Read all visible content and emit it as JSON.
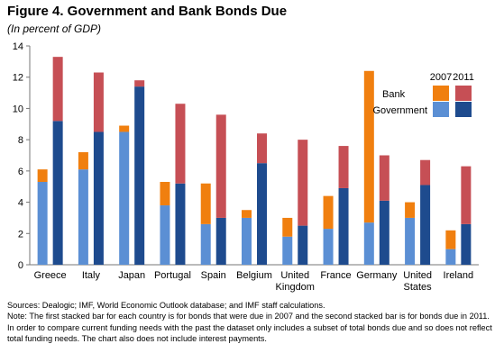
{
  "title": "Figure 4. Government and Bank Bonds Due",
  "subtitle": "(In percent of GDP)",
  "notes": {
    "sources": "Sources: Dealogic; IMF, World Economic Outlook database; and IMF staff calculations.",
    "note": "Note: The first stacked bar for each country is for bonds that were due in 2007 and the second stacked bar is for bonds due in 2011. In order to compare current funding needs with the past the dataset only includes a subset of total bonds due and so does not reflect total funding needs. The chart also does not include interest payments."
  },
  "chart_data": {
    "type": "bar",
    "stacked": true,
    "ylim": [
      0,
      14
    ],
    "yticks": [
      0,
      2,
      4,
      6,
      8,
      10,
      12,
      14
    ],
    "categories": [
      [
        "Greece"
      ],
      [
        "Italy"
      ],
      [
        "Japan"
      ],
      [
        "Portugal"
      ],
      [
        "Spain"
      ],
      [
        "Belgium"
      ],
      [
        "United",
        "Kingdom"
      ],
      [
        "France"
      ],
      [
        "Germany"
      ],
      [
        "United",
        "States"
      ],
      [
        "Ireland"
      ]
    ],
    "legend": {
      "years": [
        "2007",
        "2011"
      ],
      "rows": [
        "Bank",
        "Government"
      ]
    },
    "colors": {
      "government_2007": "#5b8fd4",
      "bank_2007": "#f07f0f",
      "government_2011": "#1e4b8e",
      "bank_2011": "#c64f55",
      "axis": "#777777"
    },
    "series": [
      {
        "name": "2007",
        "government": [
          5.3,
          6.1,
          8.5,
          3.8,
          2.6,
          3.0,
          1.8,
          2.3,
          2.7,
          3.0,
          1.0
        ],
        "bank": [
          0.8,
          1.1,
          0.4,
          1.5,
          2.6,
          0.5,
          1.2,
          2.1,
          9.7,
          1.0,
          1.2
        ],
        "total": [
          6.1,
          7.2,
          8.9,
          5.3,
          5.2,
          3.5,
          3.0,
          4.4,
          12.4,
          4.0,
          2.2
        ]
      },
      {
        "name": "2011",
        "government": [
          9.2,
          8.5,
          11.4,
          5.2,
          3.0,
          6.5,
          2.5,
          4.9,
          4.1,
          5.1,
          2.6
        ],
        "bank": [
          4.1,
          3.8,
          0.4,
          5.1,
          6.6,
          1.9,
          5.5,
          2.7,
          2.9,
          1.6,
          3.7
        ],
        "total": [
          13.3,
          12.3,
          11.8,
          10.3,
          9.6,
          8.4,
          8.0,
          7.6,
          7.0,
          6.7,
          6.3
        ]
      }
    ]
  }
}
